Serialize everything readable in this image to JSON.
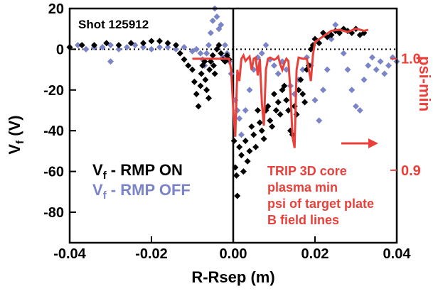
{
  "chart_data": {
    "type": "scatter",
    "annotation_shot": "Shot 125912",
    "xlabel": "R-Rsep (m)",
    "ylabel_main": "V",
    "ylabel_sub": "f",
    "ylabel_unit": "(V)",
    "y2label": "psi-min",
    "xlim": [
      -0.04,
      0.04
    ],
    "ylim": [
      -95,
      20
    ],
    "y2lim": [
      0.835,
      1.045
    ],
    "x_ticks": [
      "-0.04",
      "-0.02",
      "0.00",
      "0.02",
      "0.04"
    ],
    "x_tick_values": [
      -0.04,
      -0.02,
      0.0,
      0.02,
      0.04
    ],
    "y_ticks": [
      "20",
      "0",
      "-20",
      "-40",
      "-60",
      "-80"
    ],
    "y_tick_values": [
      20,
      0,
      -20,
      -40,
      -60,
      -80
    ],
    "y2_ticks": [
      "1.0",
      "0.9"
    ],
    "y2_tick_values": [
      1.0,
      0.9
    ],
    "legend": [
      {
        "main": "V",
        "sub": "f",
        "rest": " - RMP ON",
        "color": "#000000"
      },
      {
        "main": "V",
        "sub": "f",
        "rest": " - RMP OFF",
        "color": "#7b84c6"
      }
    ],
    "trip_note": [
      "TRIP 3D core",
      "plasma min",
      "psi of target plate",
      "B field lines"
    ],
    "colors": {
      "rmp_on": "#000000",
      "rmp_off": "#7b84c6",
      "psi": "#e8403a"
    },
    "series": [
      {
        "name": "Vf - RMP ON",
        "x": [
          -0.04,
          -0.037,
          -0.034,
          -0.031,
          -0.028,
          -0.025,
          -0.022,
          -0.02,
          -0.018,
          -0.016,
          -0.014,
          -0.013,
          -0.012,
          -0.011,
          -0.01,
          -0.0095,
          -0.009,
          -0.0085,
          -0.008,
          -0.0078,
          -0.0075,
          -0.007,
          -0.0068,
          -0.0065,
          -0.006,
          -0.0058,
          -0.0055,
          -0.005,
          -0.0048,
          -0.0045,
          -0.004,
          -0.0035,
          -0.003,
          -0.0025,
          -0.002,
          -0.0015,
          -0.001,
          0.0002,
          0.0005,
          0.0008,
          0.001,
          0.0015,
          0.002,
          0.0025,
          0.003,
          0.0035,
          0.004,
          0.0045,
          0.005,
          0.0055,
          0.006,
          0.0065,
          0.007,
          0.0075,
          0.008,
          0.0085,
          0.009,
          0.0095,
          0.01,
          0.0105,
          0.011,
          0.0115,
          0.012,
          0.0125,
          0.013,
          0.0135,
          0.014,
          0.0145,
          0.015,
          0.0155,
          0.016,
          0.0165,
          0.017,
          0.0175,
          0.018,
          0.0185,
          0.019,
          0.0195,
          0.02,
          0.021,
          0.022,
          0.023,
          0.024,
          0.025,
          0.026,
          0.027,
          0.028,
          0.029,
          0.03,
          0.031,
          0.032
        ],
        "y": [
          1,
          2,
          2,
          3,
          2,
          3,
          3,
          4,
          4,
          3,
          2,
          -2,
          -5,
          -8,
          -10,
          -16,
          -22,
          -28,
          -18,
          -12,
          -8,
          -6,
          -15,
          -20,
          -24,
          -10,
          -6,
          -3,
          -8,
          -12,
          0,
          2,
          -2,
          -5,
          -6,
          -3,
          -5,
          -45,
          -58,
          -62,
          -72,
          -48,
          -52,
          -60,
          -45,
          -55,
          -50,
          -38,
          -42,
          -48,
          -30,
          -36,
          -40,
          -44,
          -30,
          -28,
          -35,
          -38,
          -22,
          -30,
          -26,
          -32,
          -20,
          -18,
          -25,
          -30,
          -40,
          -42,
          -28,
          -32,
          -20,
          -15,
          -22,
          -26,
          -10,
          -8,
          0,
          2,
          5,
          3,
          8,
          6,
          7,
          9,
          8,
          10,
          9,
          8,
          10,
          7,
          8
        ]
      },
      {
        "name": "Vf - RMP OFF",
        "x": [
          -0.04,
          -0.038,
          -0.036,
          -0.034,
          -0.032,
          -0.03,
          -0.028,
          -0.026,
          -0.024,
          -0.022,
          -0.02,
          -0.018,
          -0.016,
          -0.014,
          -0.012,
          -0.01,
          -0.009,
          -0.008,
          -0.0075,
          -0.007,
          -0.0065,
          -0.006,
          -0.0055,
          -0.005,
          -0.0045,
          -0.004,
          -0.0035,
          -0.003,
          -0.0025,
          -0.002,
          -0.0015,
          -0.001,
          -0.0005,
          -0.03,
          0.0005,
          0.001,
          0.0015,
          0.002,
          0.003,
          0.004,
          0.005,
          0.006,
          0.007,
          0.008,
          0.009,
          0.01,
          0.011,
          0.012,
          0.013,
          0.014,
          0.015,
          0.016,
          0.017,
          0.018,
          0.019,
          0.02,
          0.021,
          0.022,
          0.023,
          0.024,
          0.025,
          0.026,
          0.027,
          0.028,
          0.029,
          0.03,
          0.031,
          0.032,
          0.033,
          0.034,
          0.035,
          0.036,
          0.037,
          0.038,
          0.039,
          0.04
        ],
        "y": [
          1,
          2,
          0,
          1,
          1,
          2,
          0,
          1,
          2,
          1,
          0,
          1,
          1,
          0,
          1,
          -1,
          0,
          -2,
          -5,
          -8,
          -2,
          2,
          8,
          14,
          20,
          16,
          10,
          12,
          -4,
          2,
          -2,
          -6,
          -12,
          -6,
          -25,
          -30,
          -34,
          -42,
          -30,
          -20,
          -10,
          -4,
          -2,
          2,
          -5,
          -8,
          -12,
          -6,
          -10,
          -18,
          -22,
          -15,
          -10,
          -4,
          -8,
          -25,
          -35,
          -20,
          -10,
          5,
          12,
          8,
          -2,
          -10,
          -20,
          -28,
          -30,
          -15,
          -8,
          -4,
          -10,
          -6,
          -12,
          -8,
          -4,
          -6
        ]
      },
      {
        "name": "psi-min",
        "x": [
          -0.01,
          -0.008,
          -0.006,
          -0.004,
          -0.002,
          -0.001,
          -0.0005,
          0.0,
          0.0005,
          0.001,
          0.0015,
          0.002,
          0.0025,
          0.003,
          0.0035,
          0.004,
          0.0045,
          0.005,
          0.0055,
          0.006,
          0.0065,
          0.007,
          0.0075,
          0.008,
          0.0085,
          0.009,
          0.0095,
          0.01,
          0.0105,
          0.011,
          0.0115,
          0.012,
          0.0125,
          0.013,
          0.0135,
          0.014,
          0.0145,
          0.015,
          0.0155,
          0.016,
          0.017,
          0.018,
          0.0185,
          0.019,
          0.0195,
          0.02,
          0.022,
          0.024,
          0.026,
          0.028,
          0.03,
          0.032,
          0.033
        ],
        "y": [
          1.0,
          1.0,
          1.0,
          1.0,
          1.0,
          1.0,
          0.99,
          0.955,
          0.93,
          0.99,
          0.98,
          1.0,
          1.003,
          0.998,
          1.0,
          1.002,
          0.99,
          1.0,
          1.001,
          0.985,
          1.0,
          0.96,
          0.94,
          0.99,
          1.0,
          1.001,
          1.0,
          0.999,
          1.0,
          1.002,
          0.995,
          0.99,
          0.996,
          1.0,
          0.998,
          0.97,
          0.93,
          0.92,
          0.99,
          1.001,
          1.0,
          1.0,
          0.99,
          0.98,
          1.003,
          1.015,
          1.02,
          1.025,
          1.026,
          1.024,
          1.027,
          1.025,
          1.026
        ]
      }
    ]
  }
}
